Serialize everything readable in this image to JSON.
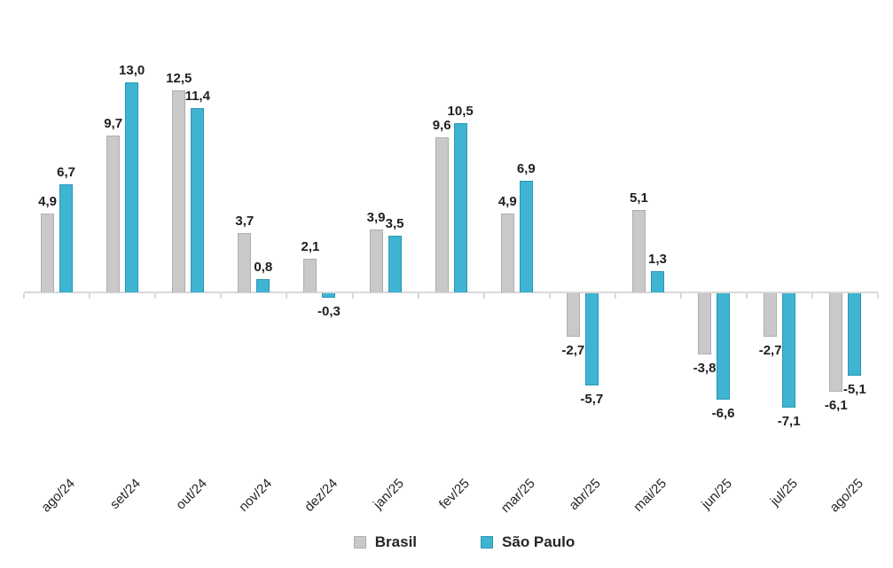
{
  "chart_data": {
    "type": "bar",
    "title": "",
    "xlabel": "",
    "ylabel": "",
    "categories": [
      "ago/24",
      "set/24",
      "out/24",
      "nov/24",
      "dez/24",
      "jan/25",
      "fev/25",
      "mar/25",
      "abr/25",
      "mai/25",
      "jun/25",
      "jul/25",
      "ago/25"
    ],
    "series": [
      {
        "name": "Brasil",
        "color": "#c9c9c9",
        "border_color": "#aeaeae",
        "values": [
          4.9,
          9.7,
          12.5,
          3.7,
          2.1,
          3.9,
          9.6,
          4.9,
          -2.7,
          5.1,
          -3.8,
          -2.7,
          -6.1
        ],
        "labels": [
          "4,9",
          "9,7",
          "12,5",
          "3,7",
          "2,1",
          "3,9",
          "9,6",
          "4,9",
          "-2,7",
          "5,1",
          "-3,8",
          "-2,7",
          "-6,1"
        ]
      },
      {
        "name": "São Paulo",
        "color": "#3fb4d2",
        "border_color": "#2a97b5",
        "values": [
          6.7,
          13.0,
          11.4,
          0.8,
          -0.3,
          3.5,
          10.5,
          6.9,
          -5.7,
          1.3,
          -6.6,
          -7.1,
          -5.1
        ],
        "labels": [
          "6,7",
          "13,0",
          "11,4",
          "0,8",
          "-0,3",
          "3,5",
          "10,5",
          "6,9",
          "-5,7",
          "1,3",
          "-6,6",
          "-7,1",
          "-5,1"
        ]
      }
    ],
    "ylim": [
      -8,
      14
    ],
    "grid": false,
    "legend_position": "bottom",
    "axis_color": "#d9d9d9",
    "value_label_color": "#1f1f1f",
    "tick_label_color": "#262626"
  }
}
